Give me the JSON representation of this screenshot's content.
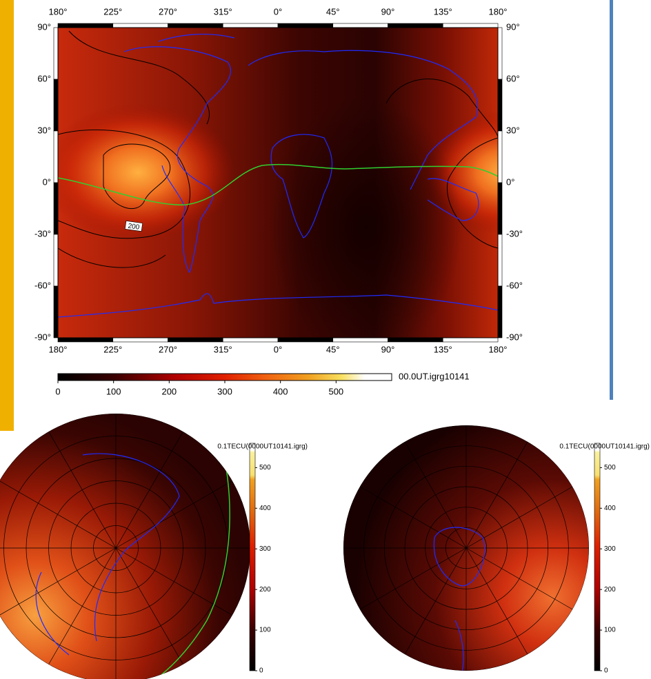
{
  "world_map": {
    "top_axis": [
      "180°",
      "225°",
      "270°",
      "315°",
      "0°",
      "45°",
      "90°",
      "135°",
      "180°"
    ],
    "bottom_axis": [
      "180°",
      "225°",
      "270°",
      "315°",
      "0°",
      "45°",
      "90°",
      "135°",
      "180°"
    ],
    "left_axis": [
      "90°",
      "60°",
      "30°",
      "0°",
      "-30°",
      "-60°",
      "-90°"
    ],
    "right_axis": [
      "90°",
      "60°",
      "30°",
      "0°",
      "-30°",
      "-60°",
      "-90°"
    ],
    "contour_label": "200",
    "colorbar": {
      "range": [
        0,
        600
      ],
      "ticks": [
        0,
        100,
        200,
        300,
        400,
        500
      ],
      "label": "00.0UT.igrg10141"
    }
  },
  "polar_maps": [
    {
      "title": "0.1TECU(0000UT10141.igrg)",
      "colorbar": {
        "range": [
          0,
          560
        ],
        "ticks": [
          0,
          100,
          200,
          300,
          400,
          500
        ]
      }
    },
    {
      "title": "0.1TECU(0000UT10141.igrg)",
      "colorbar": {
        "range": [
          0,
          560
        ],
        "ticks": [
          0,
          100,
          200,
          300,
          400,
          500
        ]
      }
    }
  ]
}
